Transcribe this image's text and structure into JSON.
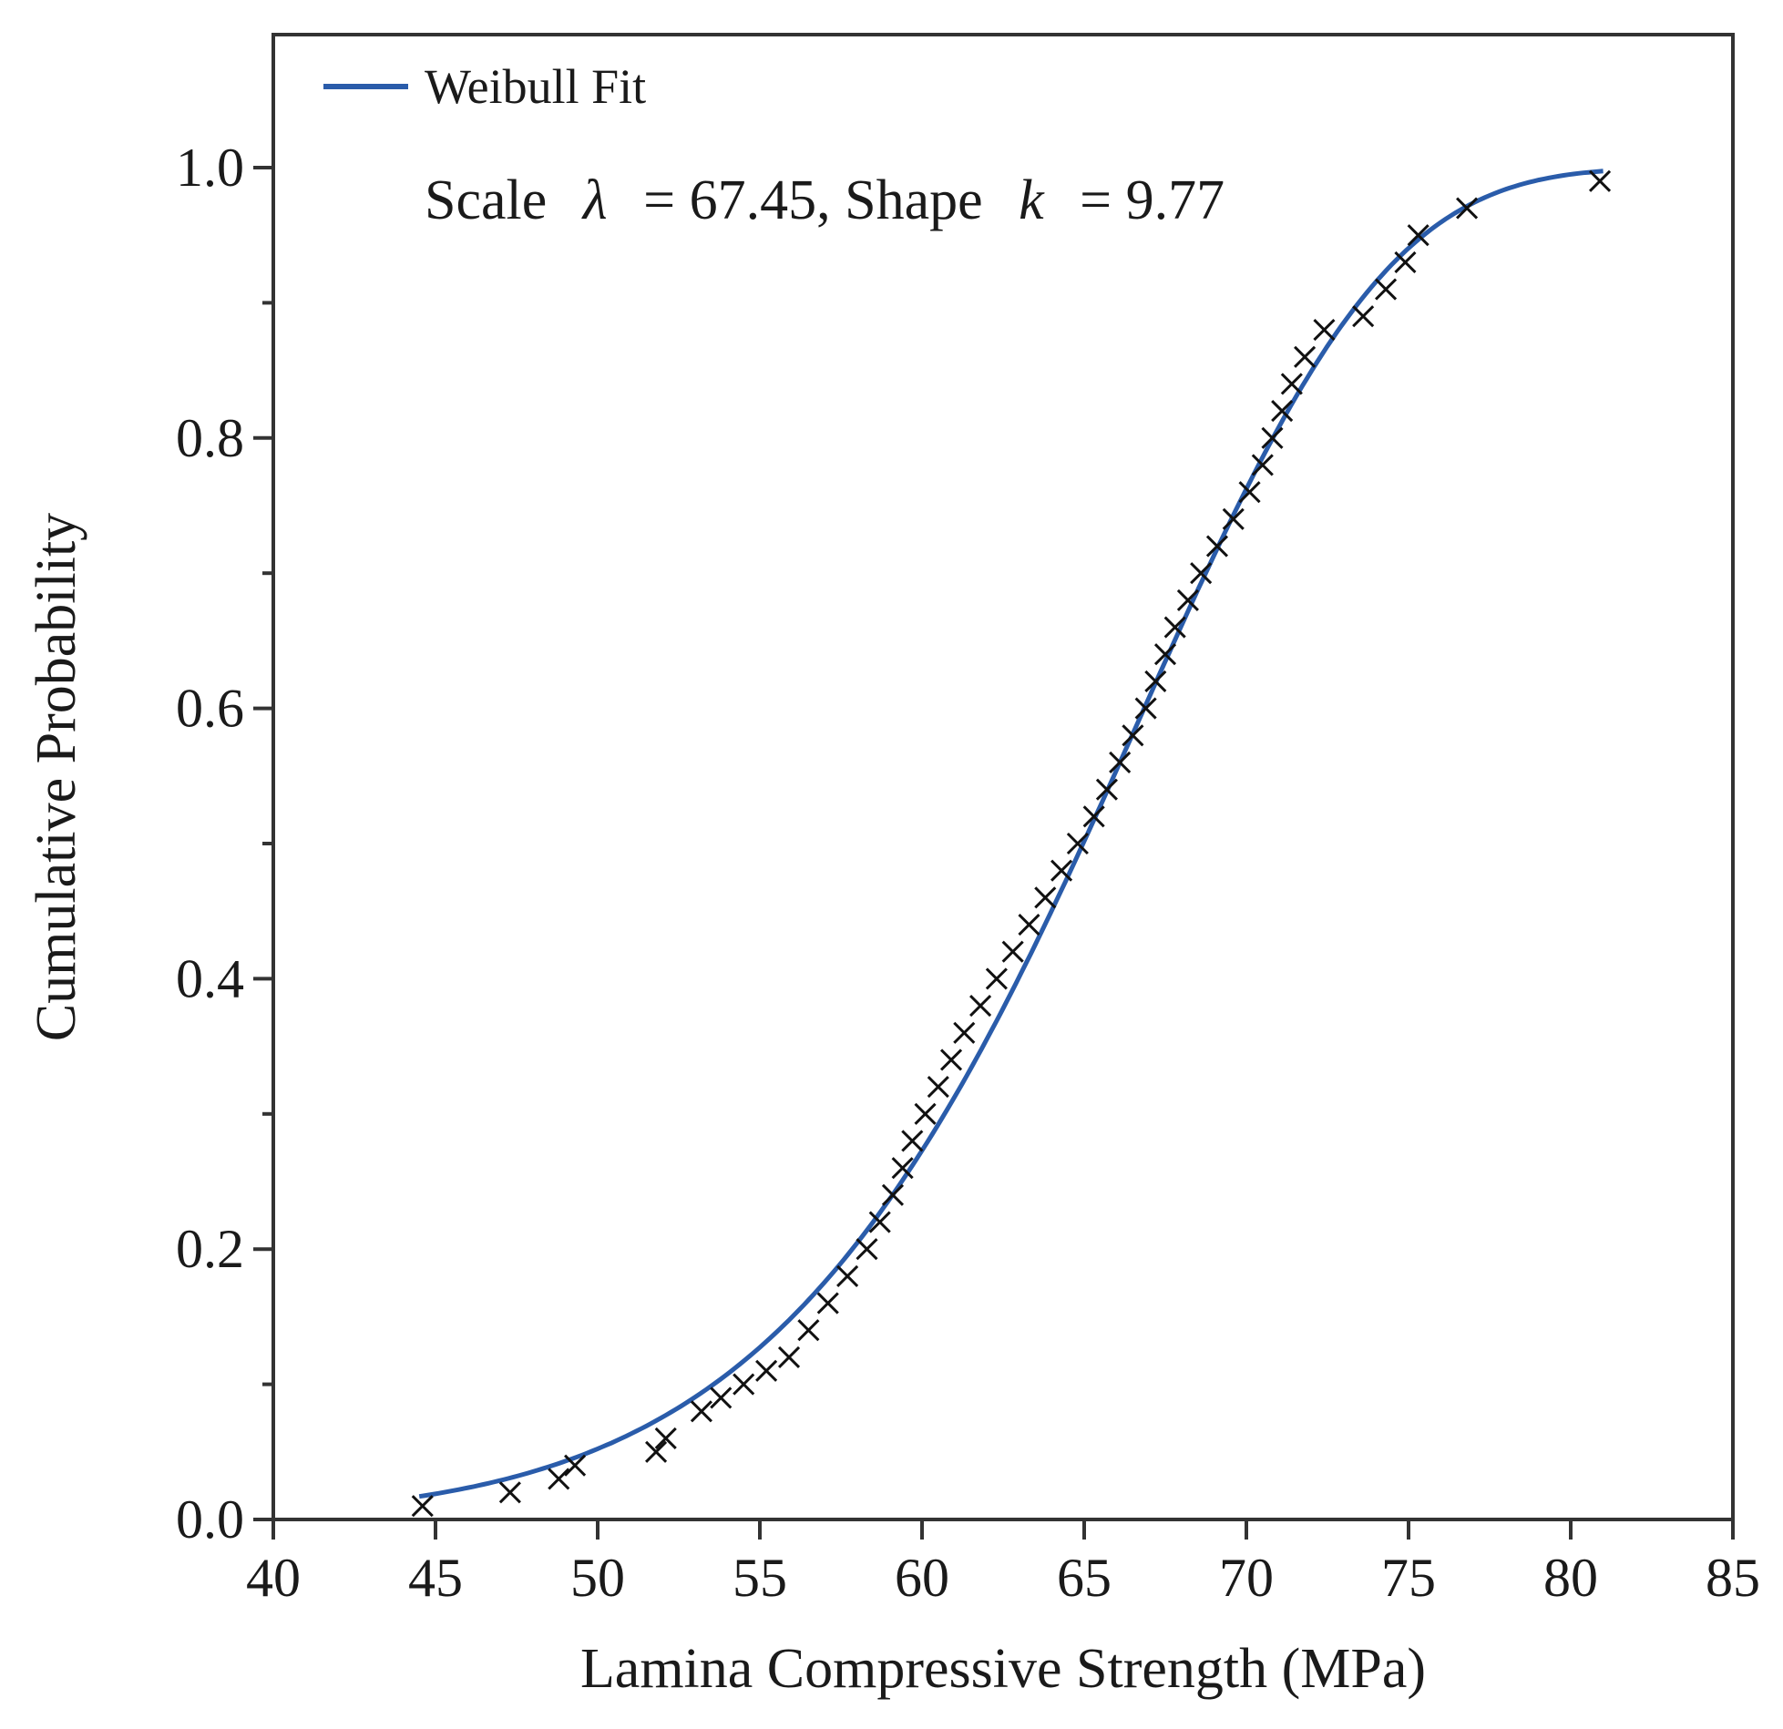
{
  "chart_data": {
    "type": "scatter",
    "title": "",
    "xlabel": "Lamina Compressive Strength (MPa)",
    "ylabel": "Cumulative Probability",
    "xlim": [
      40,
      85
    ],
    "ylim": [
      0,
      1.1
    ],
    "xticks": [
      40,
      45,
      50,
      55,
      60,
      65,
      70,
      75,
      80,
      85
    ],
    "xtick_labels": [
      "40",
      "45",
      "50",
      "55",
      "60",
      "65",
      "70",
      "75",
      "80",
      "85"
    ],
    "yticks": [
      0.0,
      0.2,
      0.4,
      0.6,
      0.8,
      1.0
    ],
    "ytick_labels": [
      "0.0",
      "0.2",
      "0.4",
      "0.6",
      "0.8",
      "1.0"
    ],
    "yminor_ticks": [
      0.1,
      0.3,
      0.5,
      0.7,
      0.9
    ],
    "grid": false,
    "legend": {
      "position": "top-left",
      "entries": [
        "Weibull Fit"
      ]
    },
    "annotation": {
      "prefix": "Scale",
      "lambda_symbol": "λ",
      "lambda_text": "= 67.45, Shape",
      "k_symbol": "k",
      "k_text": "= 9.77"
    },
    "fit": {
      "name": "Weibull Fit",
      "scale": 67.45,
      "shape": 9.77,
      "color": "#2a5caa",
      "x_range": [
        44.5,
        81
      ]
    },
    "series": [
      {
        "name": "Data",
        "marker": "x",
        "color": "#111111",
        "x": [
          44.6,
          47.3,
          48.8,
          49.3,
          51.8,
          52.1,
          53.2,
          53.8,
          54.5,
          55.2,
          55.9,
          56.5,
          57.1,
          57.7,
          58.3,
          58.7,
          59.1,
          59.4,
          59.7,
          60.1,
          60.5,
          60.9,
          61.3,
          61.8,
          62.3,
          62.8,
          63.3,
          63.8,
          64.3,
          64.8,
          65.3,
          65.7,
          66.1,
          66.5,
          66.9,
          67.2,
          67.5,
          67.8,
          68.2,
          68.6,
          69.1,
          69.6,
          70.1,
          70.5,
          70.8,
          71.1,
          71.4,
          71.8,
          72.4,
          73.6,
          74.3,
          74.9,
          75.3,
          76.8,
          80.9
        ],
        "y": [
          0.01,
          0.02,
          0.03,
          0.04,
          0.05,
          0.06,
          0.08,
          0.09,
          0.1,
          0.11,
          0.12,
          0.14,
          0.16,
          0.18,
          0.2,
          0.22,
          0.24,
          0.26,
          0.28,
          0.3,
          0.32,
          0.34,
          0.36,
          0.38,
          0.4,
          0.42,
          0.44,
          0.46,
          0.48,
          0.5,
          0.52,
          0.54,
          0.56,
          0.58,
          0.6,
          0.62,
          0.64,
          0.66,
          0.68,
          0.7,
          0.72,
          0.74,
          0.76,
          0.78,
          0.8,
          0.82,
          0.84,
          0.86,
          0.88,
          0.89,
          0.91,
          0.93,
          0.95,
          0.97,
          0.99
        ]
      }
    ]
  }
}
